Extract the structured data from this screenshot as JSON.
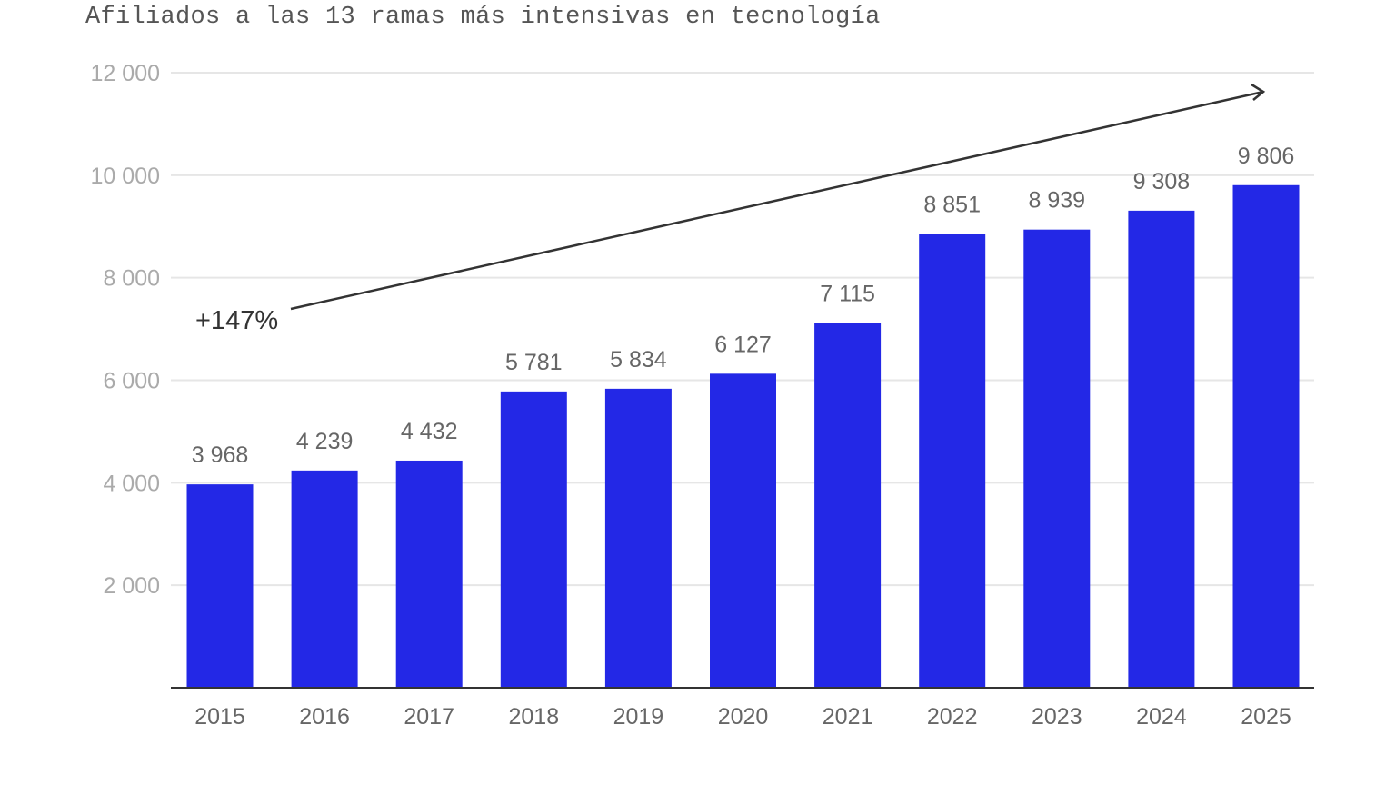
{
  "chart_data": {
    "type": "bar",
    "title": "Afiliados a las 13 ramas más intensivas en tecnología",
    "categories": [
      "2015",
      "2016",
      "2017",
      "2018",
      "2019",
      "2020",
      "2021",
      "2022",
      "2023",
      "2024",
      "2025"
    ],
    "values": [
      3968,
      4239,
      4432,
      5781,
      5834,
      6127,
      7115,
      8851,
      8939,
      9308,
      9806
    ],
    "data_labels": [
      "3 968",
      "4 239",
      "4 432",
      "5 781",
      "5 834",
      "6 127",
      "7 115",
      "8 851",
      "8 939",
      "9 308",
      "9 806"
    ],
    "ylim": [
      0,
      12000
    ],
    "yticks": [
      2000,
      4000,
      6000,
      8000,
      10000,
      12000
    ],
    "ytick_labels": [
      "2 000",
      "4 000",
      "6 000",
      "8 000",
      "10 000",
      "12 000"
    ],
    "grid": true,
    "bar_color": "#2328e6",
    "annotation": {
      "text": "+147%",
      "arrow": "trend arrow from 2015 to 2025"
    }
  }
}
